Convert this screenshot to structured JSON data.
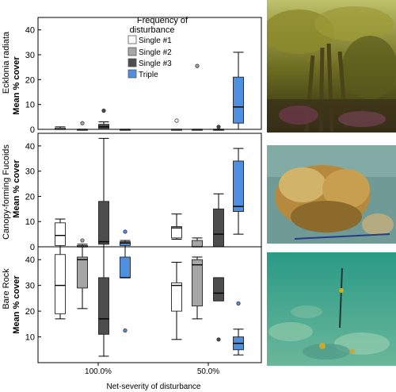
{
  "chart_data": {
    "type": "boxplot",
    "xlabel": "Net-severity of disturbance",
    "categories": [
      "100.0%",
      "50.0%"
    ],
    "legend": {
      "title": [
        "Frequency of",
        "disturbance"
      ],
      "placement": "top-center",
      "entries": [
        {
          "name": "Single #1",
          "color": "#ffffff"
        },
        {
          "name": "Single #2",
          "color": "#a6a6a6"
        },
        {
          "name": "Single #3",
          "color": "#4d4d4d"
        },
        {
          "name": "Triple",
          "color": "#4f8fe0"
        }
      ]
    },
    "panels": [
      {
        "row_label": "Ecklonia radiata",
        "ylabel": "Mean % cover",
        "ylim": [
          0,
          45
        ],
        "yticks": [
          0,
          10,
          20,
          30,
          40
        ],
        "groups": [
          {
            "category": "100.0%",
            "boxes": [
              {
                "series": "Single #1",
                "min": 0,
                "q1": 0,
                "median": 0,
                "q3": 0.5,
                "max": 1,
                "outliers": []
              },
              {
                "series": "Single #2",
                "min": 0,
                "q1": 0,
                "median": 0,
                "q3": 0,
                "max": 0,
                "outliers": [
                  2.5
                ]
              },
              {
                "series": "Single #3",
                "min": 0,
                "q1": 0,
                "median": 1,
                "q3": 2,
                "max": 3,
                "outliers": [
                  7.5
                ]
              },
              {
                "series": "Triple",
                "min": 0,
                "q1": 0,
                "median": 0,
                "q3": 0,
                "max": 0,
                "outliers": []
              }
            ]
          },
          {
            "category": "50.0%",
            "boxes": [
              {
                "series": "Single #1",
                "min": 0,
                "q1": 0,
                "median": 0,
                "q3": 0,
                "max": 0,
                "outliers": [
                  3.5
                ]
              },
              {
                "series": "Single #2",
                "min": 0,
                "q1": 0,
                "median": 0,
                "q3": 0,
                "max": 0,
                "outliers": [
                  25.5
                ]
              },
              {
                "series": "Single #3",
                "min": 0,
                "q1": 0,
                "median": 0,
                "q3": 0,
                "max": 0,
                "outliers": [
                  1
                ]
              },
              {
                "series": "Triple",
                "min": 0,
                "q1": 2.5,
                "median": 9,
                "q3": 21,
                "max": 31,
                "outliers": []
              }
            ]
          }
        ]
      },
      {
        "row_label": "Canopy-forming Fucoids",
        "ylabel": "Mean % cover",
        "ylim": [
          0,
          45
        ],
        "yticks": [
          0,
          10,
          20,
          30,
          40
        ],
        "groups": [
          {
            "category": "100.0%",
            "boxes": [
              {
                "series": "Single #1",
                "min": 0,
                "q1": 0.5,
                "median": 4.5,
                "q3": 9.5,
                "max": 11,
                "outliers": []
              },
              {
                "series": "Single #2",
                "min": 0,
                "q1": 0,
                "median": 0,
                "q3": 0.5,
                "max": 1,
                "outliers": [
                  2.5
                ]
              },
              {
                "series": "Single #3",
                "min": 0,
                "q1": 1,
                "median": 2,
                "q3": 18,
                "max": 43,
                "outliers": []
              },
              {
                "series": "Triple",
                "min": 0,
                "q1": 0.5,
                "median": 1.5,
                "q3": 2,
                "max": 2.5,
                "outliers": [
                  6
                ]
              }
            ]
          },
          {
            "category": "50.0%",
            "boxes": [
              {
                "series": "Single #1",
                "min": 3,
                "q1": 3.5,
                "median": 7.5,
                "q3": 8,
                "max": 13,
                "outliers": []
              },
              {
                "series": "Single #2",
                "min": 0,
                "q1": 0,
                "median": 0,
                "q3": 2.5,
                "max": 3.5,
                "outliers": []
              },
              {
                "series": "Single #3",
                "min": 0,
                "q1": 0,
                "median": 5,
                "q3": 15,
                "max": 21,
                "outliers": []
              },
              {
                "series": "Triple",
                "min": 5,
                "q1": 14,
                "median": 16,
                "q3": 34,
                "max": 39,
                "outliers": []
              }
            ]
          }
        ]
      },
      {
        "row_label": "Bare Rock",
        "ylabel": "Mean % cover",
        "ylim": [
          0,
          45
        ],
        "yticks": [
          0,
          10,
          20,
          30,
          40
        ],
        "groups": [
          {
            "category": "100.0%",
            "boxes": [
              {
                "series": "Single #1",
                "min": 17,
                "q1": 19,
                "median": 30,
                "q3": 42,
                "max": 45,
                "outliers": []
              },
              {
                "series": "Single #2",
                "min": 21,
                "q1": 29,
                "median": 40,
                "q3": 41,
                "max": 45,
                "outliers": []
              },
              {
                "series": "Single #3",
                "min": 2.5,
                "q1": 11,
                "median": 17,
                "q3": 33,
                "max": 45,
                "outliers": []
              },
              {
                "series": "Triple",
                "min": 33,
                "q1": 33,
                "median": 33,
                "q3": 41,
                "max": 45,
                "outliers": [
                  12.5
                ]
              }
            ]
          },
          {
            "category": "50.0%",
            "boxes": [
              {
                "series": "Single #1",
                "min": 9,
                "q1": 20,
                "median": 30,
                "q3": 31,
                "max": 39,
                "outliers": []
              },
              {
                "series": "Single #2",
                "min": 17,
                "q1": 22,
                "median": 38,
                "q3": 40,
                "max": 41,
                "outliers": []
              },
              {
                "series": "Single #3",
                "min": 24,
                "q1": 24,
                "median": 27,
                "q3": 33,
                "max": 33,
                "outliers": [
                  9
                ]
              },
              {
                "series": "Triple",
                "min": 3,
                "q1": 5,
                "median": 7.5,
                "q3": 10,
                "max": 13,
                "outliers": [
                  23
                ]
              }
            ]
          }
        ]
      }
    ]
  },
  "photos": [
    {
      "subject": "kelp-forest-photo",
      "colors": [
        "#3c3a14",
        "#8a8a2a",
        "#6a6a1e",
        "#c9c76a"
      ]
    },
    {
      "subject": "fucoid-canopy-photo",
      "colors": [
        "#6f9a95",
        "#c9a85a",
        "#a87f34",
        "#e2cf8f"
      ]
    },
    {
      "subject": "bare-rock-photo",
      "colors": [
        "#2f8f83",
        "#6fc0a4",
        "#1f6b63",
        "#9bd3b4"
      ]
    }
  ]
}
